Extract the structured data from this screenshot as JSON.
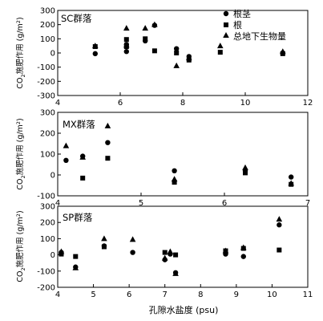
{
  "figure": {
    "xlabel": "孔隙水盐度 (psu)",
    "ylabel_pre": "CO",
    "ylabel_sub": "2",
    "ylabel_post": "施肥作用 (g/m",
    "ylabel_sup": "2",
    "ylabel_end": ")"
  },
  "legend": {
    "placement": "top-right",
    "items": [
      {
        "marker": "circle",
        "label": "根茎"
      },
      {
        "marker": "square",
        "label": "根"
      },
      {
        "marker": "triangle",
        "label": "总地下生物量"
      }
    ]
  },
  "chart_data": [
    {
      "type": "scatter",
      "group_label": "SC群落",
      "xlim": [
        4,
        12
      ],
      "ylim": [
        -300,
        300
      ],
      "xticks": [
        4,
        6,
        8,
        10,
        12
      ],
      "yticks": [
        -300,
        -200,
        -100,
        0,
        100,
        200,
        300
      ],
      "series": [
        {
          "name": "根茎",
          "marker": "circle",
          "points": [
            [
              5.2,
              -5
            ],
            [
              6.2,
              10
            ],
            [
              6.2,
              60
            ],
            [
              6.8,
              85
            ],
            [
              7.1,
              195
            ],
            [
              7.8,
              30
            ],
            [
              8.2,
              -25
            ],
            [
              11.2,
              0
            ]
          ]
        },
        {
          "name": "根",
          "marker": "square",
          "points": [
            [
              5.2,
              45
            ],
            [
              6.2,
              95
            ],
            [
              6.2,
              45
            ],
            [
              6.8,
              100
            ],
            [
              7.1,
              15
            ],
            [
              7.8,
              0
            ],
            [
              8.2,
              -50
            ],
            [
              9.2,
              5
            ],
            [
              11.2,
              -5
            ]
          ]
        },
        {
          "name": "总地下生物量",
          "marker": "triangle",
          "points": [
            [
              5.2,
              50
            ],
            [
              6.2,
              175
            ],
            [
              6.2,
              55
            ],
            [
              6.8,
              175
            ],
            [
              7.1,
              200
            ],
            [
              7.8,
              -90
            ],
            [
              8.2,
              -35
            ],
            [
              9.2,
              50
            ],
            [
              11.2,
              10
            ]
          ]
        }
      ]
    },
    {
      "type": "scatter",
      "group_label": "MX群落",
      "xlim": [
        4,
        7
      ],
      "ylim": [
        -100,
        300
      ],
      "xticks": [
        4,
        5,
        6,
        7
      ],
      "yticks": [
        -100,
        0,
        100,
        200,
        300
      ],
      "series": [
        {
          "name": "根茎",
          "marker": "circle",
          "points": [
            [
              4.1,
              70
            ],
            [
              4.3,
              90
            ],
            [
              4.6,
              155
            ],
            [
              5.4,
              20
            ],
            [
              6.25,
              20
            ],
            [
              6.8,
              -10
            ]
          ]
        },
        {
          "name": "根",
          "marker": "square",
          "points": [
            [
              4.3,
              -15
            ],
            [
              4.6,
              80
            ],
            [
              5.4,
              -35
            ],
            [
              6.25,
              10
            ],
            [
              6.8,
              -45
            ]
          ]
        },
        {
          "name": "总地下生物量",
          "marker": "triangle",
          "points": [
            [
              4.1,
              140
            ],
            [
              4.3,
              85
            ],
            [
              4.6,
              235
            ],
            [
              5.4,
              -20
            ],
            [
              6.25,
              35
            ],
            [
              6.8,
              -40
            ]
          ]
        }
      ]
    },
    {
      "type": "scatter",
      "group_label": "SP群落",
      "xlim": [
        4,
        11
      ],
      "ylim": [
        -200,
        300
      ],
      "xticks": [
        4,
        5,
        6,
        7,
        8,
        9,
        10,
        11
      ],
      "yticks": [
        -200,
        -100,
        0,
        100,
        200,
        300
      ],
      "series": [
        {
          "name": "根茎",
          "marker": "circle",
          "points": [
            [
              4.1,
              15
            ],
            [
              4.5,
              -75
            ],
            [
              5.3,
              55
            ],
            [
              6.1,
              15
            ],
            [
              7.0,
              -30
            ],
            [
              7.15,
              5
            ],
            [
              7.3,
              -110
            ],
            [
              8.7,
              5
            ],
            [
              9.2,
              -10
            ],
            [
              10.2,
              185
            ]
          ]
        },
        {
          "name": "根",
          "marker": "square",
          "points": [
            [
              4.1,
              5
            ],
            [
              4.5,
              -10
            ],
            [
              5.3,
              50
            ],
            [
              7.0,
              15
            ],
            [
              7.3,
              0
            ],
            [
              8.7,
              25
            ],
            [
              9.2,
              40
            ],
            [
              10.2,
              30
            ]
          ]
        },
        {
          "name": "总地下生物量",
          "marker": "triangle",
          "points": [
            [
              4.1,
              20
            ],
            [
              4.5,
              -80
            ],
            [
              5.3,
              100
            ],
            [
              6.1,
              95
            ],
            [
              7.0,
              -20
            ],
            [
              7.15,
              20
            ],
            [
              7.3,
              -115
            ],
            [
              8.7,
              25
            ],
            [
              9.2,
              45
            ],
            [
              10.2,
              220
            ]
          ]
        }
      ]
    }
  ]
}
